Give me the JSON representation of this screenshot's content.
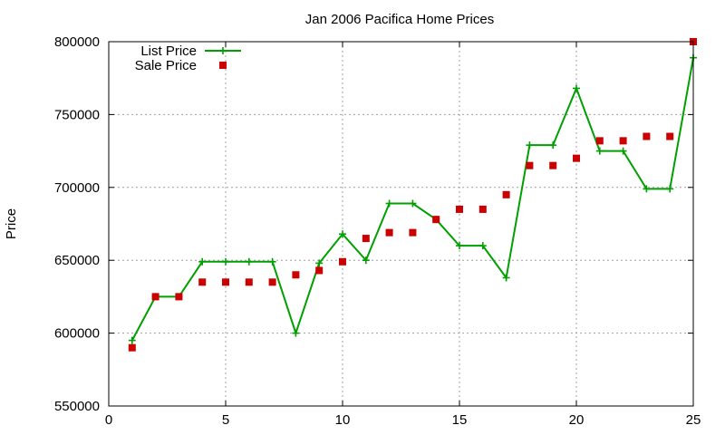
{
  "chart_data": {
    "type": "line",
    "title": "Jan 2006 Pacifica Home Prices",
    "xlabel": "",
    "ylabel": "Price",
    "xlim": [
      0,
      25
    ],
    "ylim": [
      550000,
      800000
    ],
    "xticks": [
      0,
      5,
      10,
      15,
      20,
      25
    ],
    "yticks": [
      550000,
      600000,
      650000,
      700000,
      750000,
      800000
    ],
    "grid": true,
    "legend_position": "top-left",
    "series": [
      {
        "name": "List Price",
        "style": "line-with-plus-markers",
        "color": "#00a000",
        "x": [
          1,
          2,
          3,
          4,
          5,
          6,
          7,
          8,
          9,
          10,
          11,
          12,
          13,
          14,
          15,
          16,
          17,
          18,
          19,
          20,
          21,
          22,
          23,
          24,
          25
        ],
        "values": [
          595000,
          625000,
          625000,
          649000,
          649000,
          649000,
          649000,
          600000,
          648000,
          668000,
          650000,
          689000,
          689000,
          678000,
          660000,
          660000,
          638000,
          729000,
          729000,
          768000,
          725000,
          725000,
          699000,
          699000,
          789000
        ]
      },
      {
        "name": "Sale Price",
        "style": "square-markers",
        "color": "#cc0000",
        "x": [
          1,
          2,
          3,
          4,
          5,
          6,
          7,
          8,
          9,
          10,
          11,
          12,
          13,
          14,
          15,
          16,
          17,
          18,
          19,
          20,
          21,
          22,
          23,
          24,
          25
        ],
        "values": [
          590000,
          625000,
          625000,
          635000,
          635000,
          635000,
          635000,
          640000,
          643000,
          649000,
          665000,
          669000,
          669000,
          678000,
          685000,
          685000,
          695000,
          715000,
          715000,
          720000,
          732000,
          732000,
          735000,
          735000,
          800000
        ]
      }
    ]
  }
}
